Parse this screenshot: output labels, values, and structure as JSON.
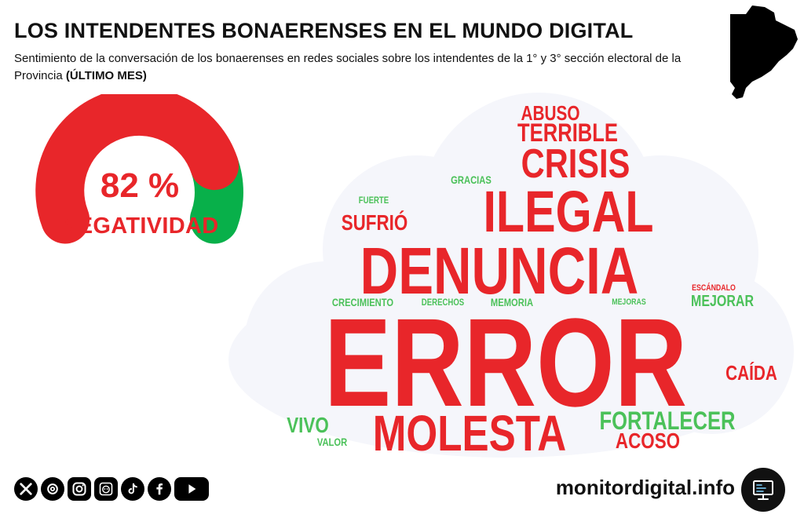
{
  "header": {
    "title": "LOS INTENDENTES BONAERENSES EN EL MUNDO DIGITAL",
    "subtitle_main": "Sentimiento de la conversación de los bonaerenses en redes sociales sobre los intendentes de la 1° y 3° sección electoral de la Provincia ",
    "subtitle_bold": "(ÚLTIMO MES)"
  },
  "gauge": {
    "value_label": "82 %",
    "fraction": 0.82,
    "label": "NEGATIVIDAD",
    "negative_color": "#e8262a",
    "positive_color": "#08b04a"
  },
  "word_cloud": {
    "negative_color": "#e8262a",
    "positive_color": "#4bc159",
    "words": [
      {
        "text": "ABUSO",
        "sentiment": "negative"
      },
      {
        "text": "TERRIBLE",
        "sentiment": "negative"
      },
      {
        "text": "CRISIS",
        "sentiment": "negative"
      },
      {
        "text": "GRACIAS",
        "sentiment": "positive"
      },
      {
        "text": "FUERTE",
        "sentiment": "positive"
      },
      {
        "text": "ILEGAL",
        "sentiment": "negative"
      },
      {
        "text": "SUFRIÓ",
        "sentiment": "negative"
      },
      {
        "text": "DENUNCIA",
        "sentiment": "negative"
      },
      {
        "text": "ESCÁNDALO",
        "sentiment": "negative"
      },
      {
        "text": "CRECIMIENTO",
        "sentiment": "positive"
      },
      {
        "text": "DERECHOS",
        "sentiment": "positive"
      },
      {
        "text": "MEMORIA",
        "sentiment": "positive"
      },
      {
        "text": "MEJORAS",
        "sentiment": "positive"
      },
      {
        "text": "MEJORAR",
        "sentiment": "positive"
      },
      {
        "text": "ERROR",
        "sentiment": "negative"
      },
      {
        "text": "CAÍDA",
        "sentiment": "negative"
      },
      {
        "text": "VIVO",
        "sentiment": "positive"
      },
      {
        "text": "VALOR",
        "sentiment": "positive"
      },
      {
        "text": "MOLESTA",
        "sentiment": "negative"
      },
      {
        "text": "FORTALECER",
        "sentiment": "positive"
      },
      {
        "text": "ACOSO",
        "sentiment": "negative"
      }
    ]
  },
  "footer": {
    "social_icons": [
      "x-icon",
      "threads-icon",
      "instagram-icon",
      "telegram-icon",
      "tiktok-icon",
      "facebook-icon",
      "youtube-icon"
    ],
    "site": "monitordigital.info",
    "monitor_icon": "monitor-icon"
  }
}
